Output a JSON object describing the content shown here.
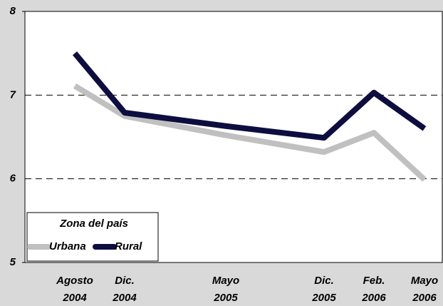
{
  "chart_data": {
    "type": "line",
    "categories": [
      "Agosto 2004",
      "Dic. 2004",
      "Mayo 2005",
      "Dic. 2005",
      "Feb. 2006",
      "Mayo 2006"
    ],
    "series": [
      {
        "name": "Urbana",
        "color": "#c0c0c0",
        "values": [
          7.11,
          6.75,
          6.52,
          6.32,
          6.55,
          5.99
        ]
      },
      {
        "name": "Rural",
        "color": "#0d0d3f",
        "values": [
          7.5,
          6.79,
          6.63,
          6.49,
          7.03,
          6.6
        ]
      }
    ],
    "ylim": [
      5,
      8
    ],
    "yticks": [
      5,
      6,
      7,
      8
    ],
    "grid": true,
    "legend": {
      "title": "Zona del país",
      "position": "lower left"
    }
  }
}
